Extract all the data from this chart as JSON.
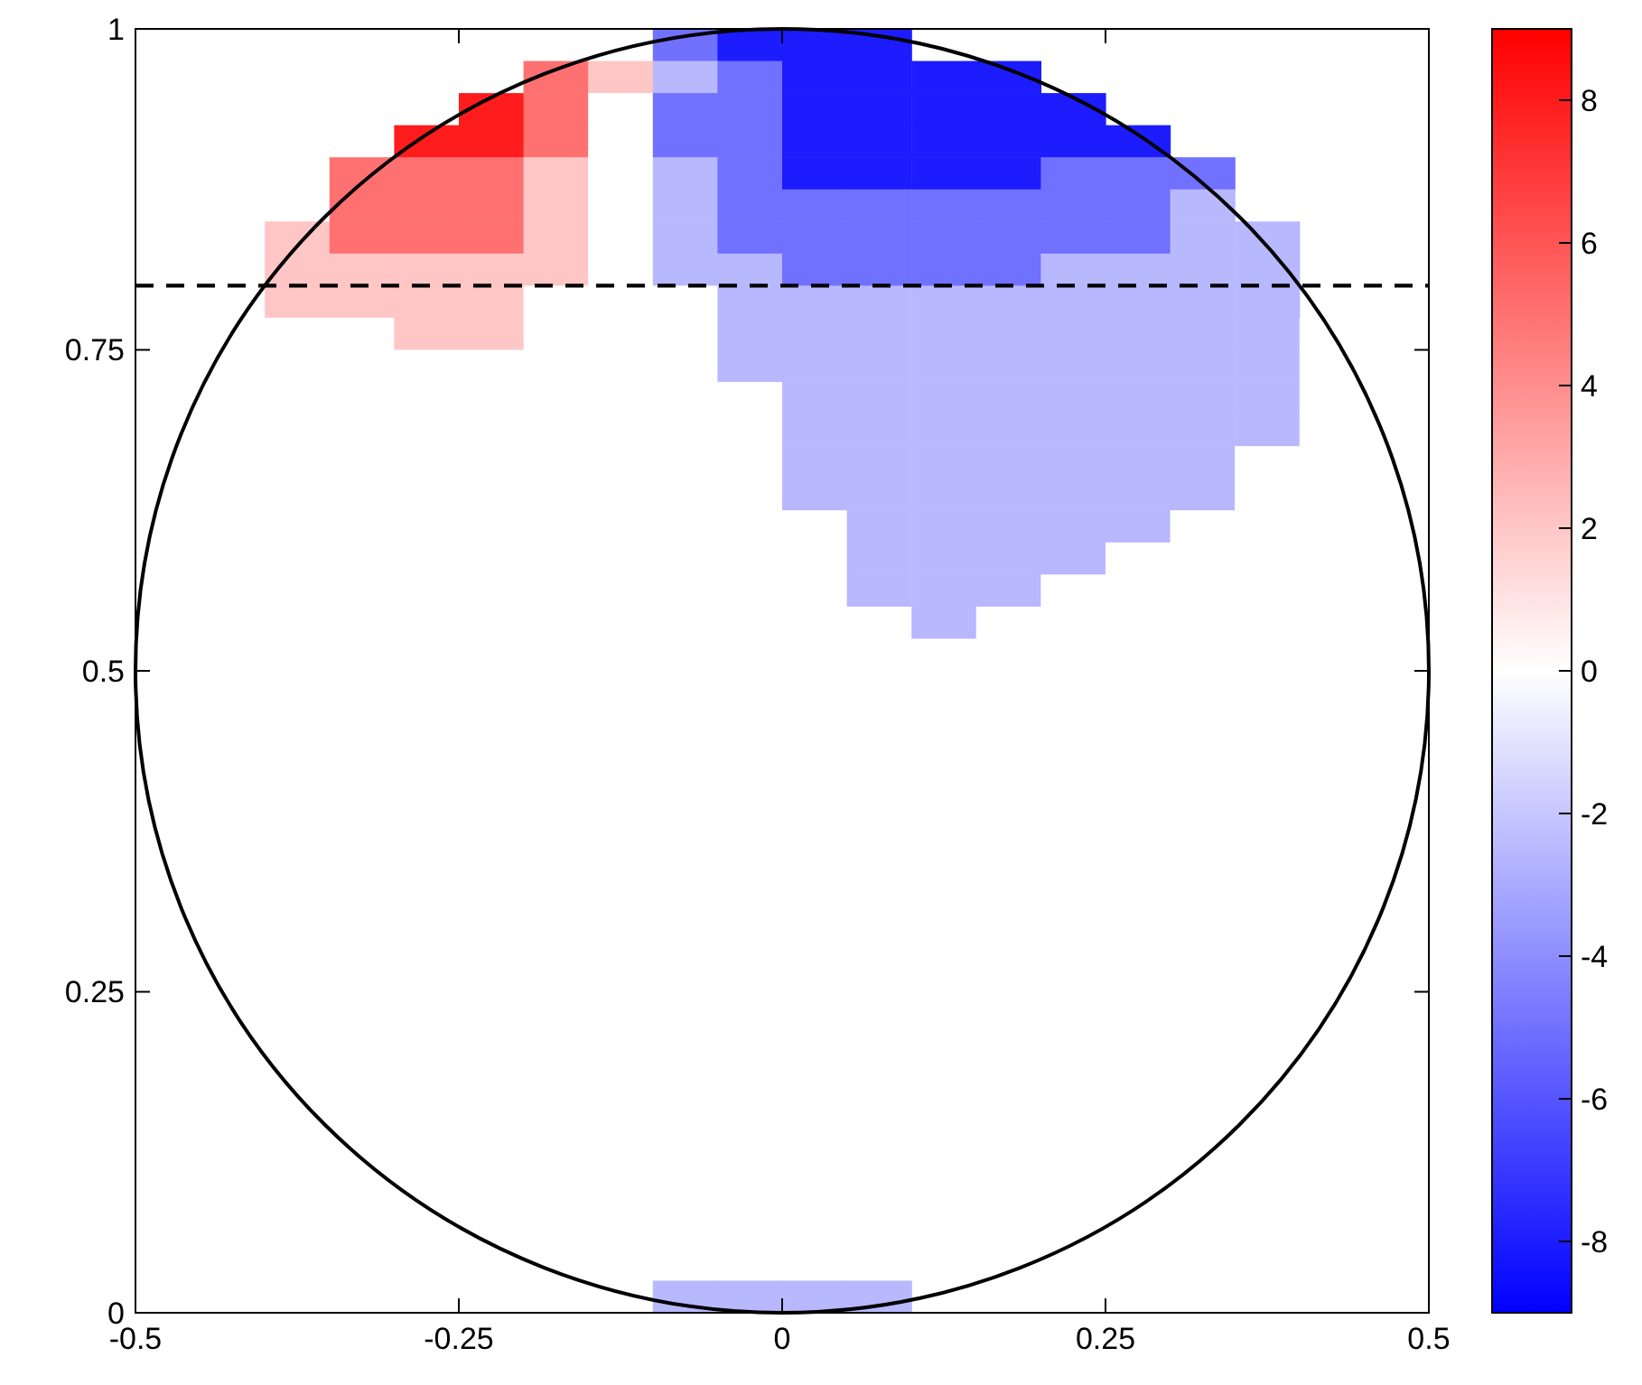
{
  "chart_data": {
    "type": "heatmap",
    "xlim": [
      -0.5,
      0.5
    ],
    "ylim": [
      0,
      1
    ],
    "xticks": [
      -0.5,
      -0.25,
      0,
      0.25,
      0.5
    ],
    "yticks": [
      0,
      0.25,
      0.5,
      0.75,
      1
    ],
    "clim": [
      -9,
      9
    ],
    "cticks": [
      -8,
      -6,
      -4,
      -2,
      0,
      2,
      4,
      6,
      8
    ],
    "ref_lines": [
      {
        "axis": "y",
        "value": 0.8,
        "line_style": "dashed",
        "color": "#000000"
      }
    ],
    "cells": [
      [
        null,
        null,
        null,
        null,
        null,
        null,
        null,
        null,
        -5,
        -8,
        -8,
        -8,
        null,
        null,
        null,
        null,
        null,
        null,
        null,
        null
      ],
      [
        null,
        null,
        null,
        null,
        null,
        null,
        5,
        2,
        -2.5,
        -5,
        -8,
        -8,
        -8,
        -8,
        null,
        null,
        null,
        null,
        null,
        null
      ],
      [
        null,
        null,
        null,
        null,
        null,
        8,
        5,
        0,
        -5,
        -5,
        -8,
        -8,
        -8,
        -8,
        -8,
        null,
        null,
        null,
        null,
        null
      ],
      [
        null,
        null,
        null,
        null,
        8,
        8,
        5,
        0,
        -5,
        -5,
        -8,
        -8,
        -8,
        -8,
        -8,
        -8,
        null,
        null,
        null,
        null
      ],
      [
        null,
        null,
        null,
        5,
        5,
        5,
        2,
        0,
        -2.5,
        -5,
        -8,
        -8,
        -8,
        -8,
        -5,
        -5,
        -5,
        null,
        null,
        null
      ],
      [
        null,
        null,
        null,
        5,
        5,
        5,
        2,
        0,
        -2.5,
        -5,
        -5,
        -5,
        -5,
        -5,
        -5,
        -5,
        -2.5,
        null,
        null,
        null
      ],
      [
        null,
        null,
        2,
        5,
        5,
        5,
        2,
        0,
        -2.5,
        -5,
        -5,
        -5,
        -5,
        -5,
        -5,
        -5,
        -2.5,
        -2.5,
        null,
        null
      ],
      [
        null,
        null,
        2,
        2,
        2,
        2,
        2,
        0,
        -2.5,
        -2.5,
        -5,
        -5,
        -5,
        -5,
        -2.5,
        -2.5,
        -2.5,
        -2.5,
        null,
        null
      ],
      [
        null,
        null,
        2,
        2,
        2,
        2,
        0,
        0,
        0,
        -2.5,
        -2.5,
        -2.5,
        -2.5,
        -2.5,
        -2.5,
        -2.5,
        -2.5,
        -2.5,
        null,
        null
      ],
      [
        null,
        0,
        0,
        0,
        2,
        2,
        0,
        0,
        0,
        -2.5,
        -2.5,
        -2.5,
        -2.5,
        -2.5,
        -2.5,
        -2.5,
        -2.5,
        -2.5,
        0,
        null
      ],
      [
        null,
        0,
        0,
        0,
        0,
        0,
        0,
        0,
        0,
        -2.5,
        -2.5,
        -2.5,
        -2.5,
        -2.5,
        -2.5,
        -2.5,
        -2.5,
        -2.5,
        0,
        null
      ],
      [
        null,
        0,
        0,
        0,
        0,
        0,
        0,
        0,
        0,
        0,
        -2.5,
        -2.5,
        -2.5,
        -2.5,
        -2.5,
        -2.5,
        -2.5,
        -2.5,
        0,
        null
      ],
      [
        null,
        0,
        0,
        0,
        0,
        0,
        0,
        0,
        0,
        0,
        -2.5,
        -2.5,
        -2.5,
        -2.5,
        -2.5,
        -2.5,
        -2.5,
        -2.5,
        0,
        null
      ],
      [
        null,
        0,
        0,
        0,
        0,
        0,
        0,
        0,
        0,
        0,
        -2.5,
        -2.5,
        -2.5,
        -2.5,
        -2.5,
        -2.5,
        -2.5,
        0,
        0,
        null
      ],
      [
        0,
        0,
        0,
        0,
        0,
        0,
        0,
        0,
        0,
        0,
        -2.5,
        -2.5,
        -2.5,
        -2.5,
        -2.5,
        -2.5,
        -2.5,
        0,
        0,
        0
      ],
      [
        0,
        0,
        0,
        0,
        0,
        0,
        0,
        0,
        0,
        0,
        0,
        -2.5,
        -2.5,
        -2.5,
        -2.5,
        -2.5,
        0,
        0,
        0,
        0
      ],
      [
        0,
        0,
        0,
        0,
        0,
        0,
        0,
        0,
        0,
        0,
        0,
        -2.5,
        -2.5,
        -2.5,
        -2.5,
        0,
        0,
        0,
        0,
        0
      ],
      [
        0,
        0,
        0,
        0,
        0,
        0,
        0,
        0,
        0,
        0,
        0,
        -2.5,
        -2.5,
        -2.5,
        0,
        0,
        0,
        0,
        0,
        0
      ],
      [
        0,
        0,
        0,
        0,
        0,
        0,
        0,
        0,
        0,
        0,
        0,
        0,
        -2.5,
        0,
        0,
        0,
        0,
        0,
        0,
        0
      ],
      [
        0,
        0,
        0,
        0,
        0,
        0,
        0,
        0,
        0,
        0,
        0,
        0,
        0,
        0,
        0,
        0,
        0,
        0,
        0,
        0
      ],
      [
        0,
        0,
        0,
        0,
        0,
        0,
        0,
        0,
        0,
        0,
        0,
        0,
        0,
        0,
        0,
        0,
        0,
        0,
        0,
        0
      ],
      [
        0,
        0,
        0,
        0,
        0,
        0,
        0,
        0,
        0,
        0,
        0,
        0,
        0,
        0,
        0,
        0,
        0,
        0,
        0,
        0
      ],
      [
        0,
        0,
        0,
        0,
        0,
        0,
        0,
        0,
        0,
        0,
        0,
        0,
        0,
        0,
        0,
        0,
        0,
        0,
        0,
        0
      ],
      [
        0,
        0,
        0,
        0,
        0,
        0,
        0,
        0,
        0,
        0,
        0,
        0,
        0,
        0,
        0,
        0,
        0,
        0,
        0,
        0
      ],
      [
        0,
        0,
        0,
        0,
        0,
        0,
        0,
        0,
        0,
        0,
        0,
        0,
        0,
        0,
        0,
        0,
        0,
        0,
        0,
        0
      ],
      [
        0,
        0,
        0,
        0,
        0,
        0,
        0,
        0,
        0,
        0,
        0,
        0,
        0,
        0,
        0,
        0,
        0,
        0,
        0,
        0
      ],
      [
        null,
        0,
        0,
        0,
        0,
        0,
        0,
        0,
        0,
        0,
        0,
        0,
        0,
        0,
        0,
        0,
        0,
        0,
        0,
        null
      ],
      [
        null,
        0,
        0,
        0,
        0,
        0,
        0,
        0,
        0,
        0,
        0,
        0,
        0,
        0,
        0,
        0,
        0,
        0,
        0,
        null
      ],
      [
        null,
        0,
        0,
        0,
        0,
        0,
        0,
        0,
        0,
        0,
        0,
        0,
        0,
        0,
        0,
        0,
        0,
        0,
        0,
        null
      ],
      [
        null,
        0,
        0,
        0,
        0,
        0,
        0,
        0,
        0,
        0,
        0,
        0,
        0,
        0,
        0,
        0,
        0,
        0,
        0,
        null
      ],
      [
        null,
        0,
        0,
        0,
        0,
        0,
        0,
        0,
        0,
        0,
        0,
        0,
        0,
        0,
        0,
        0,
        0,
        0,
        0,
        null
      ],
      [
        null,
        null,
        0,
        0,
        0,
        0,
        0,
        0,
        0,
        0,
        0,
        0,
        0,
        0,
        0,
        0,
        0,
        0,
        null,
        null
      ],
      [
        null,
        null,
        0,
        0,
        0,
        0,
        0,
        0,
        0,
        0,
        0,
        0,
        0,
        0,
        0,
        0,
        0,
        0,
        null,
        null
      ],
      [
        null,
        null,
        0,
        0,
        0,
        0,
        0,
        0,
        0,
        0,
        0,
        0,
        0,
        0,
        0,
        0,
        0,
        0,
        null,
        null
      ],
      [
        null,
        null,
        null,
        0,
        0,
        0,
        0,
        0,
        0,
        0,
        0,
        0,
        0,
        0,
        0,
        0,
        0,
        null,
        null,
        null
      ],
      [
        null,
        null,
        null,
        0,
        0,
        0,
        0,
        0,
        0,
        0,
        0,
        0,
        0,
        0,
        0,
        0,
        0,
        null,
        null,
        null
      ],
      [
        null,
        null,
        null,
        null,
        0,
        0,
        0,
        0,
        0,
        0,
        0,
        0,
        0,
        0,
        0,
        0,
        null,
        null,
        null,
        null
      ],
      [
        null,
        null,
        null,
        null,
        null,
        0,
        0,
        0,
        0,
        0,
        0,
        0,
        0,
        0,
        0,
        null,
        null,
        null,
        null,
        null
      ],
      [
        null,
        null,
        null,
        null,
        null,
        null,
        0,
        0,
        0,
        0,
        0,
        0,
        0,
        0,
        null,
        null,
        null,
        null,
        null,
        null
      ],
      [
        null,
        null,
        null,
        null,
        null,
        null,
        null,
        null,
        -2.5,
        -2.5,
        -2.5,
        -2.5,
        null,
        null,
        null,
        null,
        null,
        null,
        null,
        null
      ]
    ]
  }
}
